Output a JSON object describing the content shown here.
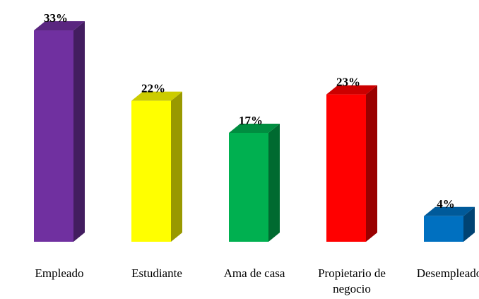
{
  "chart_data": {
    "type": "bar3d",
    "categories": [
      "Empleado",
      "Estudiante",
      "Ama de casa",
      "Propietario de negocio",
      "Desempleado"
    ],
    "values": [
      33,
      22,
      17,
      23,
      4
    ],
    "value_labels": [
      "33%",
      "22%",
      "17%",
      "23%",
      "4%"
    ],
    "colors": [
      "#7030a0",
      "#ffff00",
      "#00b050",
      "#ff0000",
      "#0070c0"
    ]
  }
}
